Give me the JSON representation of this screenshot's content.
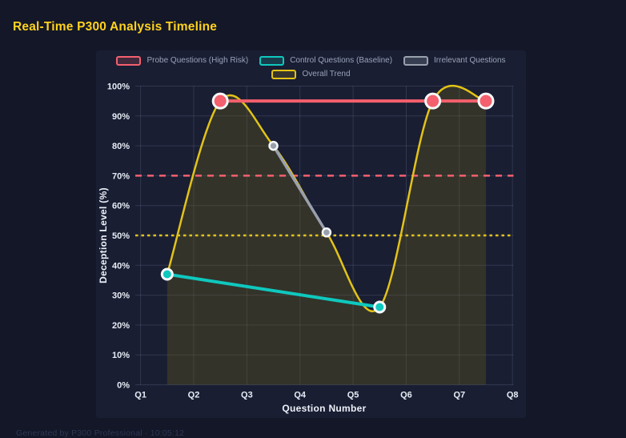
{
  "window": {
    "title": "Real-Time P300 Analysis Timeline",
    "footer": "Generated by P300 Professional · 10:05:12"
  },
  "colors": {
    "page_bg": "#131728",
    "panel_bg": "#191e33",
    "grid": "rgba(190,200,225,0.15)",
    "tick_text": "#e8ecf5",
    "axis_title_text": "#eef1f8",
    "legend_text": "#9aa3b8",
    "title_text": "#ffd21e",
    "footer_text": "#2f3752",
    "point_ring": "#f7f8fa"
  },
  "chart_data": {
    "type": "line",
    "title": "Real-Time P300 Analysis Timeline",
    "xlabel": "Question Number",
    "ylabel": "Deception Level (%)",
    "x_tick_labels": [
      "Q1",
      "Q2",
      "Q3",
      "Q4",
      "Q5",
      "Q6",
      "Q7",
      "Q8"
    ],
    "x_tick_positions": [
      1,
      2,
      3,
      4,
      5,
      6,
      7,
      8
    ],
    "x_axis_range": [
      0.9,
      8.02
    ],
    "ylim": [
      0,
      100
    ],
    "y_tick_step": 10,
    "y_tick_suffix": "%",
    "grid": true,
    "legend_position": "top",
    "series": [
      {
        "name": "Probe Questions (High Risk)",
        "color": "#f4606d",
        "swatch_fill": "rgba(244,96,109,0.18)",
        "x": [
          2.5,
          6.5,
          7.5
        ],
        "values": [
          95,
          95,
          95
        ],
        "line_width": 4,
        "smooth": false,
        "point_radius": 9,
        "point_stroke_width": 3
      },
      {
        "name": "Control Questions (Baseline)",
        "color": "#0fc8be",
        "swatch_fill": "rgba(15,200,190,0.18)",
        "x": [
          1.5,
          5.5
        ],
        "values": [
          37,
          26
        ],
        "line_width": 4,
        "smooth": false,
        "point_radius": 6.5,
        "point_stroke_width": 3
      },
      {
        "name": "Irrelevant Questions",
        "color": "#99a0ad",
        "swatch_fill": "rgba(153,160,173,0.25)",
        "x": [
          3.5,
          4.5
        ],
        "values": [
          80,
          51
        ],
        "line_width": 3.5,
        "smooth": false,
        "point_radius": 5,
        "point_stroke_width": 2.5
      },
      {
        "name": "Overall Trend",
        "color": "#e3c317",
        "swatch_fill": "rgba(227,195,23,0.15)",
        "x": [
          1.5,
          2.5,
          3.5,
          4.5,
          5.5,
          6.5,
          7.5
        ],
        "values": [
          37,
          95,
          80,
          51,
          26,
          95,
          95
        ],
        "line_width": 2.5,
        "smooth": true,
        "fill": "rgba(110,95,25,0.32)",
        "point_radius": 0,
        "point_stroke_width": 0
      }
    ],
    "thresholds": [
      {
        "name": "high-risk-threshold",
        "value": 70,
        "color": "#f4606d",
        "dash": [
          8,
          7
        ],
        "width": 2.5
      },
      {
        "name": "baseline-threshold",
        "value": 50,
        "color": "#e3c317",
        "dash": [
          3.5,
          4
        ],
        "width": 2.5
      }
    ]
  }
}
